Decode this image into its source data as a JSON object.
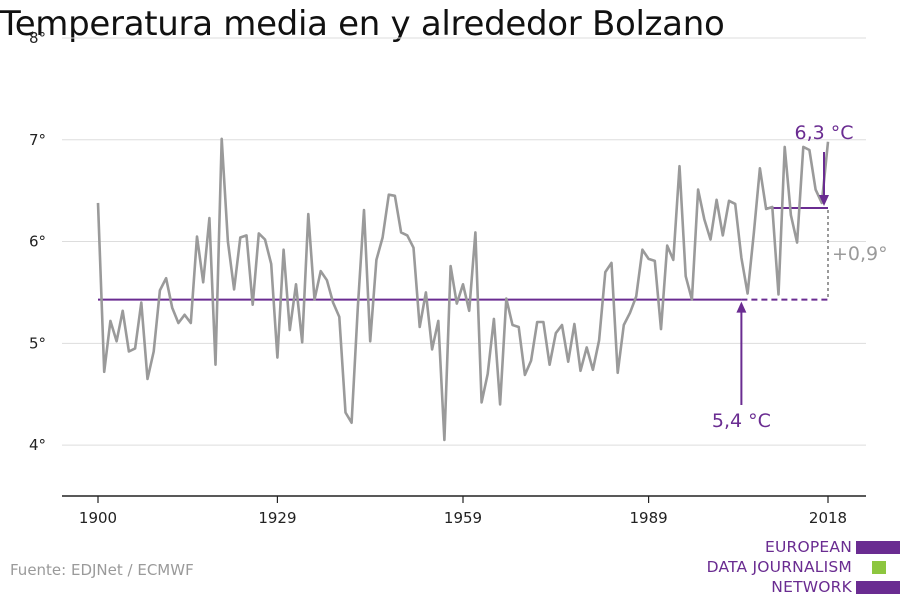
{
  "title": "Temperatura media en y alrededor Bolzano",
  "source": "Fuente: EDJNet / ECMWF",
  "logo": {
    "lines": [
      "EUROPEAN",
      "DATA JOURNALISM",
      "NETWORK"
    ],
    "colors": [
      "#6a2c91",
      "#8dc63f",
      "#6a2c91"
    ]
  },
  "colors": {
    "series": "#9a9a9a",
    "accent": "#6a2c91",
    "grid": "#dddddd",
    "axis": "#222222",
    "difference": "#9a9a9a"
  },
  "chart_data": {
    "type": "line",
    "title": "Temperatura media en y alrededor Bolzano",
    "xlabel": "",
    "ylabel": "",
    "xlim": [
      1900,
      2018
    ],
    "ylim": [
      3.5,
      8
    ],
    "yticks": [
      {
        "value": 4,
        "label": "4°"
      },
      {
        "value": 5,
        "label": "5°"
      },
      {
        "value": 6,
        "label": "6°"
      },
      {
        "value": 7,
        "label": "7°"
      },
      {
        "value": 8,
        "label": "8°"
      }
    ],
    "xticks": [
      {
        "value": 1900,
        "label": "1900"
      },
      {
        "value": 1929,
        "label": "1929"
      },
      {
        "value": 1959,
        "label": "1959"
      },
      {
        "value": 1989,
        "label": "1989"
      },
      {
        "value": 2018,
        "label": "2018"
      }
    ],
    "grid": true,
    "series": [
      {
        "x": [
          1900,
          1901,
          1902,
          1903,
          1904,
          1905,
          1906,
          1907,
          1908,
          1909,
          1910,
          1911,
          1912,
          1913,
          1914,
          1915,
          1916,
          1917,
          1918,
          1919,
          1920,
          1921,
          1922,
          1923,
          1924,
          1925,
          1926,
          1927,
          1928,
          1929,
          1930,
          1931,
          1932,
          1933,
          1934,
          1935,
          1936,
          1937,
          1938,
          1939,
          1940,
          1941,
          1942,
          1943,
          1944,
          1945,
          1946,
          1947,
          1948,
          1949,
          1950,
          1951,
          1952,
          1953,
          1954,
          1955,
          1956,
          1957,
          1958,
          1959,
          1960,
          1961,
          1962,
          1963,
          1964,
          1965,
          1966,
          1967,
          1968,
          1969,
          1970,
          1971,
          1972,
          1973,
          1974,
          1975,
          1976,
          1977,
          1978,
          1979,
          1980,
          1981,
          1982,
          1983,
          1984,
          1985,
          1986,
          1987,
          1988,
          1989,
          1990,
          1991,
          1992,
          1993,
          1994,
          1995,
          1996,
          1997,
          1998,
          1999,
          2000,
          2001,
          2002,
          2003,
          2004,
          2005,
          2006,
          2007,
          2008,
          2009,
          2010,
          2011,
          2012,
          2013,
          2014,
          2015,
          2016,
          2017,
          2018
        ],
        "values": [
          6.38,
          4.72,
          5.22,
          5.02,
          5.32,
          4.92,
          4.95,
          5.4,
          4.65,
          4.92,
          5.52,
          5.64,
          5.35,
          5.2,
          5.28,
          5.2,
          6.05,
          5.6,
          6.23,
          4.79,
          7.01,
          6.0,
          5.53,
          6.04,
          6.06,
          5.38,
          6.08,
          6.02,
          5.78,
          4.86,
          5.92,
          5.13,
          5.58,
          5.01,
          6.27,
          5.43,
          5.71,
          5.62,
          5.4,
          5.26,
          4.32,
          4.22,
          5.35,
          6.31,
          5.02,
          5.82,
          6.04,
          6.46,
          6.45,
          6.09,
          6.06,
          5.94,
          5.16,
          5.5,
          4.94,
          5.22,
          4.05,
          5.76,
          5.39,
          5.58,
          5.32,
          6.09,
          4.42,
          4.7,
          5.24,
          4.4,
          5.44,
          5.18,
          5.16,
          4.69,
          4.83,
          5.21,
          5.21,
          4.79,
          5.1,
          5.18,
          4.82,
          5.19,
          4.73,
          4.96,
          4.74,
          5.03,
          5.7,
          5.79,
          4.71,
          5.18,
          5.3,
          5.46,
          5.92,
          5.83,
          5.81,
          5.14,
          5.96,
          5.82,
          6.74,
          5.66,
          5.43,
          6.51,
          6.22,
          6.02,
          6.41,
          6.06,
          6.4,
          6.37,
          5.84,
          5.49,
          6.08,
          6.72,
          6.32,
          6.34,
          5.48,
          6.93,
          6.26,
          5.99,
          6.93,
          6.9,
          6.51,
          6.38,
          6.98
        ]
      }
    ],
    "annotations": {
      "baseline": {
        "value": 5.43,
        "from": 1900,
        "solid_to": 2004,
        "to": 2018,
        "label": "5,4 °C",
        "arrow_x": 2004
      },
      "recent": {
        "value": 6.33,
        "from": 2008,
        "to": 2018,
        "label": "6,3 °C"
      },
      "difference": {
        "label": "+0,9°",
        "x": 2018
      }
    }
  }
}
